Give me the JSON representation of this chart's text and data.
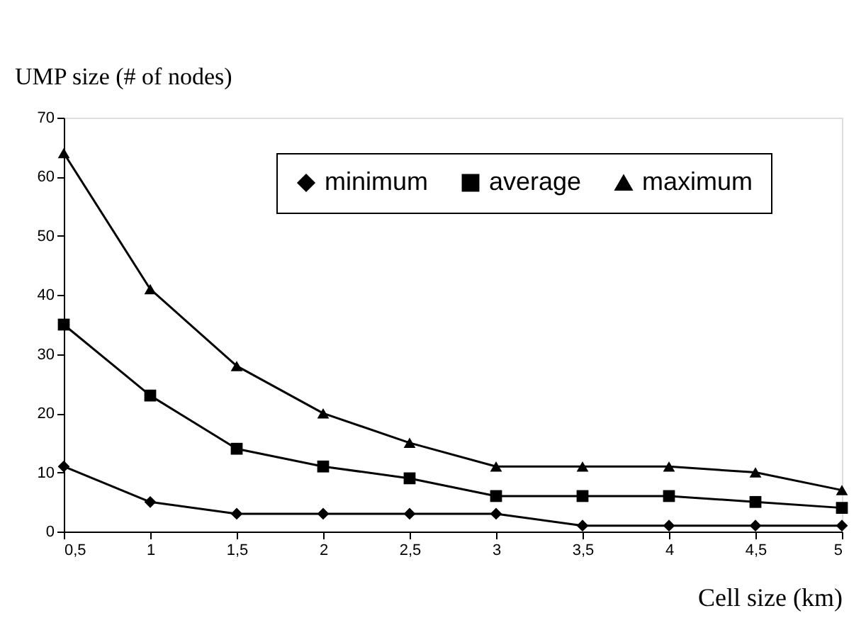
{
  "chart_data": {
    "type": "line",
    "xlabel": "Cell size (km)",
    "ylabel": "UMP size (# of nodes)",
    "categories": [
      "0,5",
      "1",
      "1,5",
      "2",
      "2,5",
      "3",
      "3,5",
      "4",
      "4,5",
      "5"
    ],
    "ylim": [
      0,
      70
    ],
    "yticks": [
      0,
      10,
      20,
      30,
      40,
      50,
      60,
      70
    ],
    "grid": false,
    "legend": "top",
    "series": [
      {
        "name": "minimum",
        "color": "#000000",
        "marker": "diamond",
        "values": [
          11,
          5,
          3,
          3,
          3,
          3,
          1,
          1,
          1,
          1
        ]
      },
      {
        "name": "average",
        "color": "#000000",
        "marker": "square",
        "values": [
          35,
          23,
          14,
          11,
          9,
          6,
          6,
          6,
          5,
          4
        ]
      },
      {
        "name": "maximum",
        "color": "#000000",
        "marker": "triangle",
        "values": [
          64,
          41,
          28,
          20,
          15,
          11,
          11,
          11,
          10,
          7
        ]
      }
    ]
  }
}
